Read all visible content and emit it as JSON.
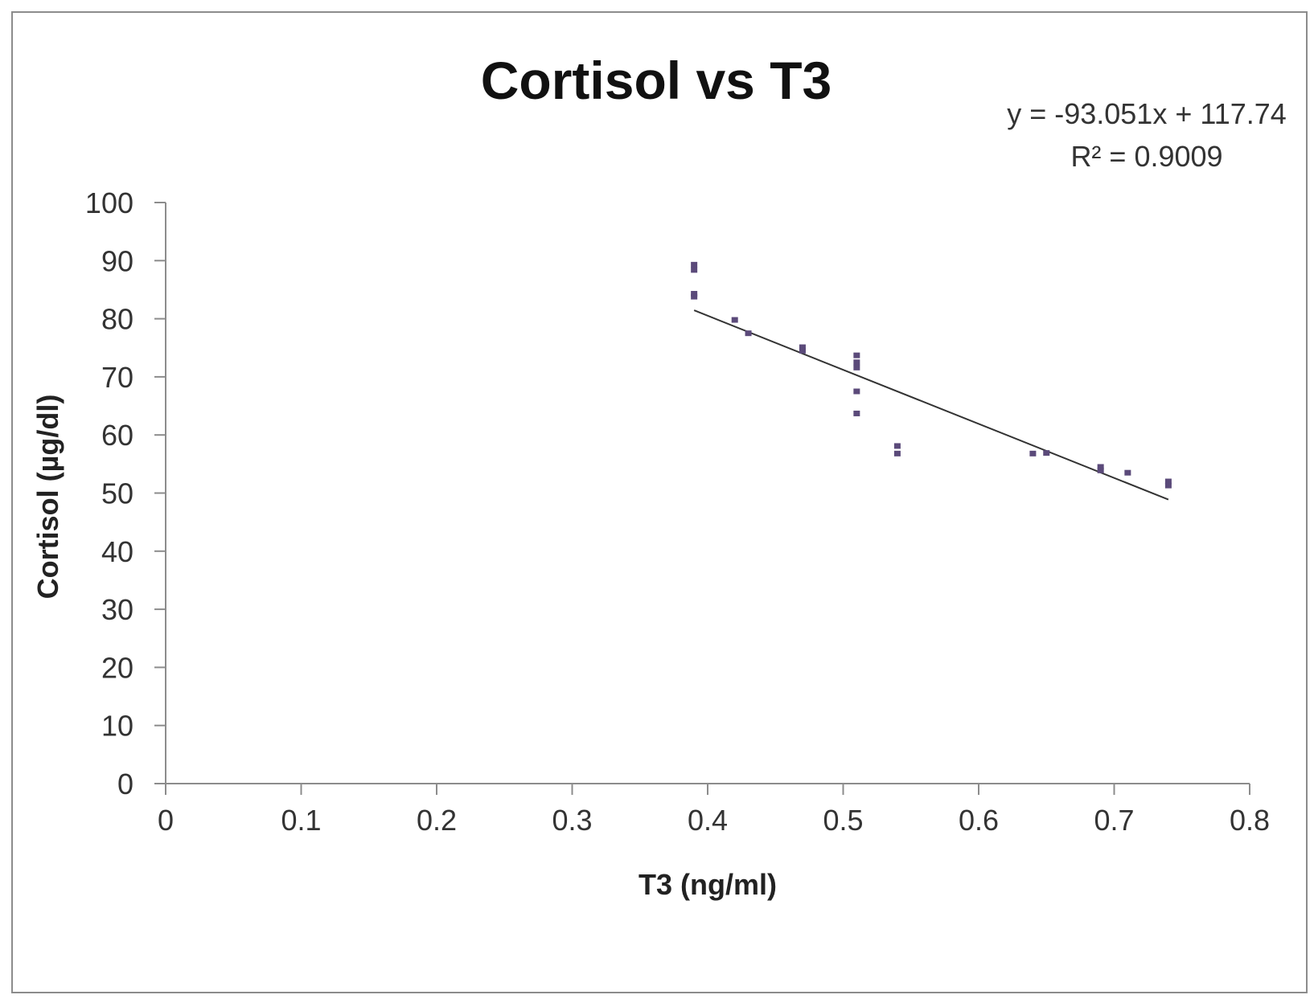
{
  "chart_data": {
    "type": "scatter",
    "title": "Cortisol vs T3",
    "xlabel": "T3 (ng/ml)",
    "ylabel": "Cortisol  (µg/dl)",
    "xlim": [
      0,
      0.8
    ],
    "ylim": [
      0,
      100
    ],
    "x_ticks": [
      0,
      0.1,
      0.2,
      0.3,
      0.4,
      0.5,
      0.6,
      0.7,
      0.8
    ],
    "x_tick_labels": [
      "0",
      "0.1",
      "0.2",
      "0.3",
      "0.4",
      "0.5",
      "0.6",
      "0.7",
      "0.8"
    ],
    "y_ticks": [
      0,
      10,
      20,
      30,
      40,
      50,
      60,
      70,
      80,
      90,
      100
    ],
    "y_tick_labels": [
      "0",
      "10",
      "20",
      "30",
      "40",
      "50",
      "60",
      "70",
      "80",
      "90",
      "100"
    ],
    "grid": false,
    "legend": "none",
    "series": [
      {
        "name": "Cortisol",
        "color": "#5b4a7a",
        "points": [
          {
            "x": 0.39,
            "y": 89.3
          },
          {
            "x": 0.39,
            "y": 88.4
          },
          {
            "x": 0.39,
            "y": 84.3
          },
          {
            "x": 0.39,
            "y": 83.8
          },
          {
            "x": 0.42,
            "y": 79.8
          },
          {
            "x": 0.43,
            "y": 77.5
          },
          {
            "x": 0.47,
            "y": 75.1
          },
          {
            "x": 0.47,
            "y": 74.5
          },
          {
            "x": 0.51,
            "y": 73.7
          },
          {
            "x": 0.51,
            "y": 72.5
          },
          {
            "x": 0.51,
            "y": 71.6
          },
          {
            "x": 0.51,
            "y": 67.5
          },
          {
            "x": 0.51,
            "y": 63.7
          },
          {
            "x": 0.54,
            "y": 58.1
          },
          {
            "x": 0.54,
            "y": 56.8
          },
          {
            "x": 0.64,
            "y": 56.8
          },
          {
            "x": 0.65,
            "y": 56.9
          },
          {
            "x": 0.69,
            "y": 54.5
          },
          {
            "x": 0.69,
            "y": 53.9
          },
          {
            "x": 0.71,
            "y": 53.5
          },
          {
            "x": 0.74,
            "y": 52.0
          },
          {
            "x": 0.74,
            "y": 51.3
          }
        ]
      }
    ],
    "trendline": {
      "type": "linear",
      "slope": -93.051,
      "intercept": 117.74,
      "x_range": [
        0.39,
        0.74
      ],
      "color": "#333333",
      "equation_text": "y = -93.051x + 117.74",
      "r2_text": "R² = 0.9009"
    }
  }
}
